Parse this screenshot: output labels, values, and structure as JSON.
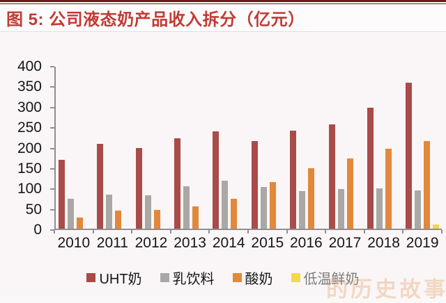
{
  "title": {
    "text": "图 5: 公司液态奶产品收入拆分（亿元）"
  },
  "chart_data": {
    "type": "bar",
    "title": "公司液态奶产品收入拆分（亿元）",
    "categories": [
      "2010",
      "2011",
      "2012",
      "2013",
      "2014",
      "2015",
      "2016",
      "2017",
      "2018",
      "2019"
    ],
    "series": [
      {
        "name": "UHT奶",
        "color": "#A94B49",
        "values": [
          168,
          208,
          198,
          221,
          238,
          214,
          240,
          256,
          297,
          357
        ]
      },
      {
        "name": "乳饮料",
        "color": "#A9A8A5",
        "values": [
          73,
          84,
          81,
          104,
          118,
          103,
          92,
          97,
          99,
          94
        ]
      },
      {
        "name": "酸奶",
        "color": "#E2883B",
        "values": [
          27,
          45,
          46,
          54,
          74,
          114,
          148,
          172,
          196,
          215
        ]
      },
      {
        "name": "低温鲜奶",
        "color": "#F0D94A",
        "values": [
          0,
          0,
          0,
          0,
          0,
          0,
          0,
          0,
          0,
          10
        ]
      }
    ],
    "ylim": [
      0,
      400
    ],
    "yticks": [
      0,
      50,
      100,
      150,
      200,
      250,
      300,
      350,
      400
    ],
    "xlabel": "",
    "ylabel": "",
    "grid": false,
    "legend_position": "bottom"
  },
  "legend": {
    "muted_item": "低温鲜奶"
  },
  "watermark": {
    "text": "的历史故事"
  },
  "colors": {
    "title": "#C23A35",
    "top_rule": "#6E1B1B",
    "axis": "#8F8F8F",
    "text": "#161616",
    "muted_legend_label": "#7C7C7C",
    "background": "#FBF8F8",
    "watermark": "#E19654"
  }
}
